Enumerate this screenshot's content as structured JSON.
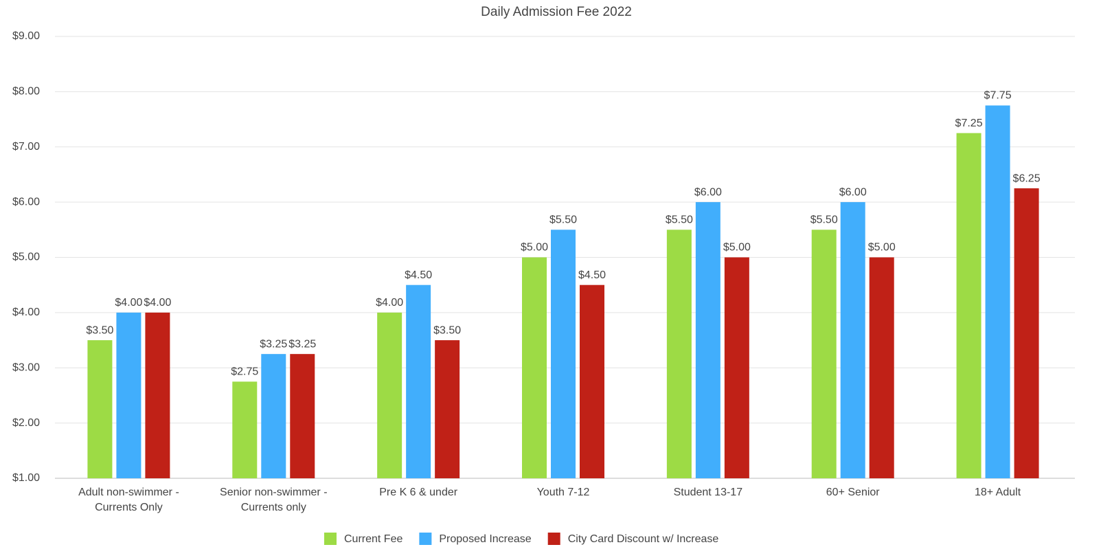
{
  "chart_data": {
    "type": "bar",
    "title": "Daily Admission Fee 2022",
    "categories": [
      "Adult non-swimmer - Currents Only",
      "Senior non-swimmer - Currents only",
      "Pre K 6 & under",
      "Youth 7-12",
      "Student 13-17",
      "60+ Senior",
      "18+ Adult"
    ],
    "series": [
      {
        "name": "Current Fee",
        "color": "#9ddb45",
        "values": [
          3.5,
          2.75,
          4,
          5,
          5.5,
          5.5,
          7.25
        ],
        "value_labels": [
          "$3.50",
          "$2.75",
          "$4.00",
          "$5.00",
          "$5.50",
          "$5.50",
          "$7.25"
        ]
      },
      {
        "name": "Proposed Increase",
        "color": "#41aefc",
        "values": [
          4,
          3.25,
          4.5,
          5.5,
          6,
          6,
          7.75
        ],
        "value_labels": [
          "$4.00",
          "$3.25",
          "$4.50",
          "$5.50",
          "$6.00",
          "$6.00",
          "$7.75"
        ]
      },
      {
        "name": "City Card Discount w/ Increase",
        "color": "#c02117",
        "values": [
          4,
          3.25,
          3.5,
          4.5,
          5,
          5,
          6.25
        ],
        "value_labels": [
          "$4.00",
          "$3.25",
          "$3.50",
          "$4.50",
          "$5.00",
          "$5.00",
          "$6.25"
        ]
      }
    ],
    "ylim": [
      1,
      9
    ],
    "yticks": [
      {
        "value": 1,
        "label": "$1.00"
      },
      {
        "value": 2,
        "label": "$2.00"
      },
      {
        "value": 3,
        "label": "$3.00"
      },
      {
        "value": 4,
        "label": "$4.00"
      },
      {
        "value": 5,
        "label": "$5.00"
      },
      {
        "value": 6,
        "label": "$6.00"
      },
      {
        "value": 7,
        "label": "$7.00"
      },
      {
        "value": 8,
        "label": "$8.00"
      },
      {
        "value": 9,
        "label": "$9.00"
      }
    ],
    "grid": true,
    "legend": "bottom"
  }
}
